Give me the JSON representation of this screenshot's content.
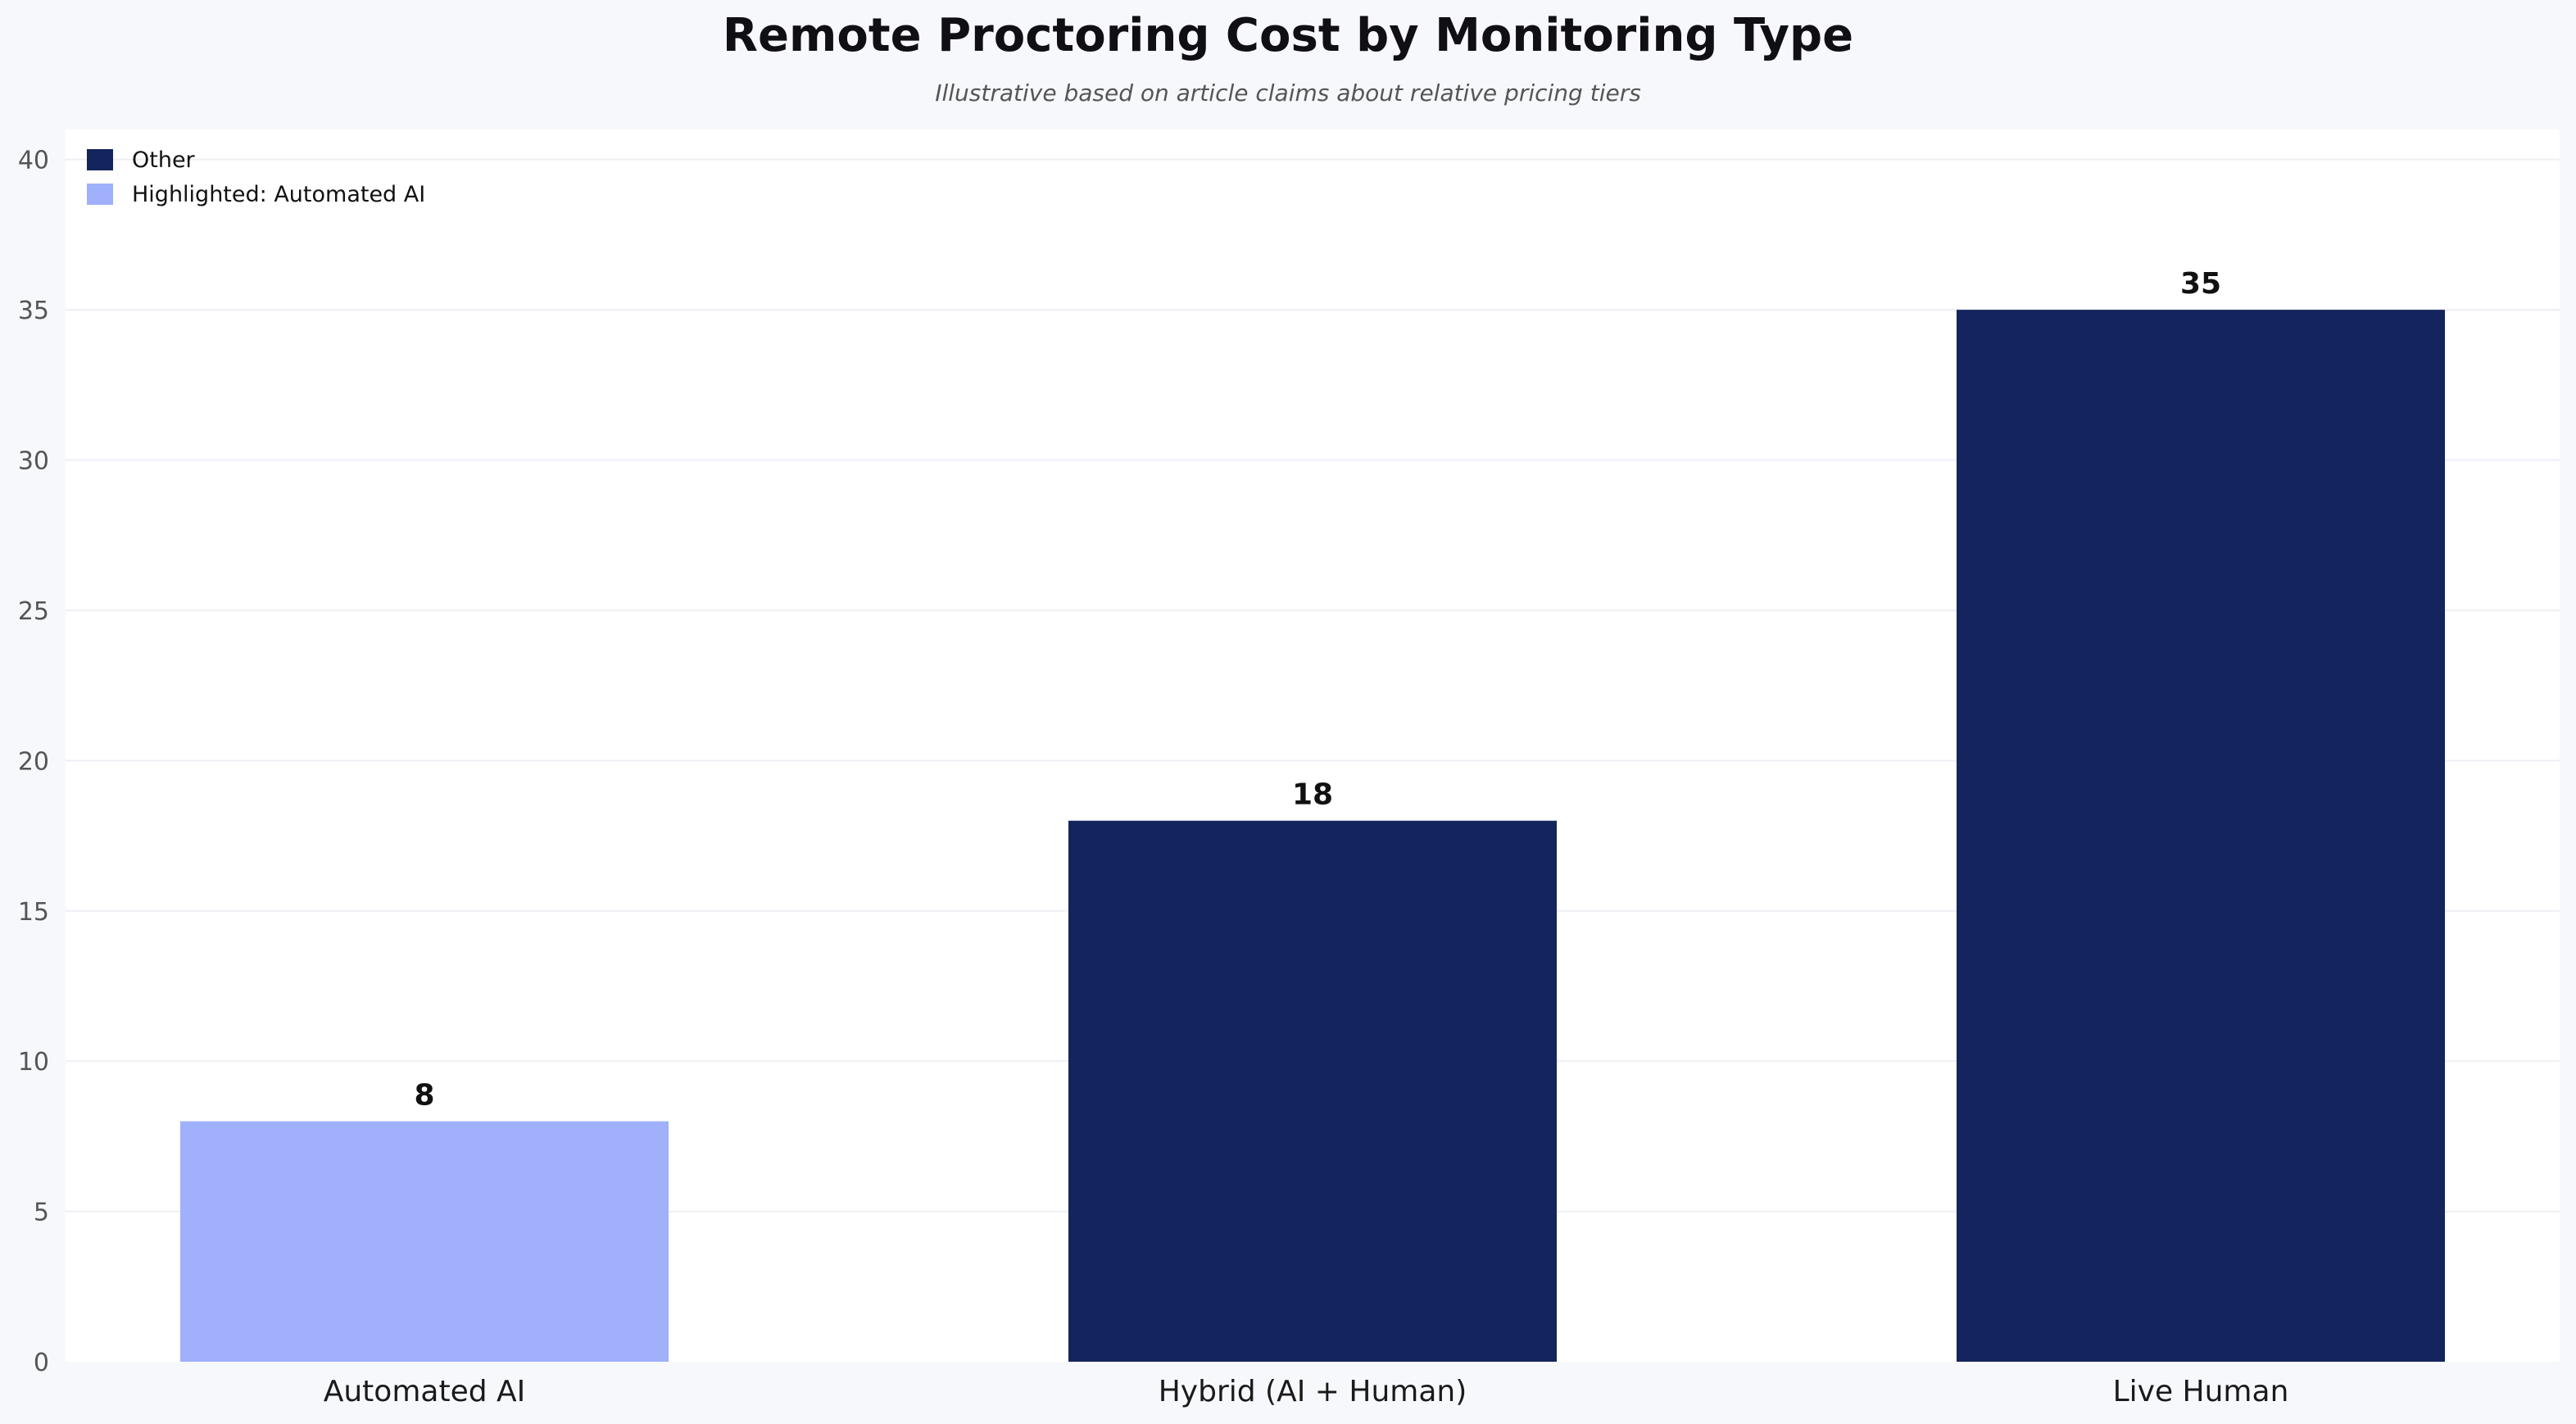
{
  "chart_data": {
    "type": "bar",
    "title": "Remote Proctoring Cost by Monitoring Type",
    "subtitle": "Illustrative based on article claims about relative pricing tiers",
    "xlabel": "",
    "ylabel": "",
    "categories": [
      "Automated AI",
      "Hybrid (AI + Human)",
      "Live Human"
    ],
    "values": [
      8,
      18,
      35
    ],
    "data_labels": [
      "8",
      "18",
      "35"
    ],
    "highlighted_category": "Automated AI",
    "ylim": [
      0,
      41
    ],
    "yticks": [
      0,
      5,
      10,
      15,
      20,
      25,
      30,
      35,
      40
    ],
    "grid": true,
    "legend": {
      "placement": "top-left",
      "entries": [
        {
          "label": "Other",
          "color": "#14245c"
        },
        {
          "label": "Highlighted: Automated AI",
          "color": "#a0b0fb"
        }
      ]
    },
    "colors": {
      "default_bar": "#14245c",
      "highlight_bar": "#a0b0fb",
      "plot_background": "#ffffff",
      "page_background": "#f7f8fc",
      "grid": "#eeeff4"
    }
  }
}
